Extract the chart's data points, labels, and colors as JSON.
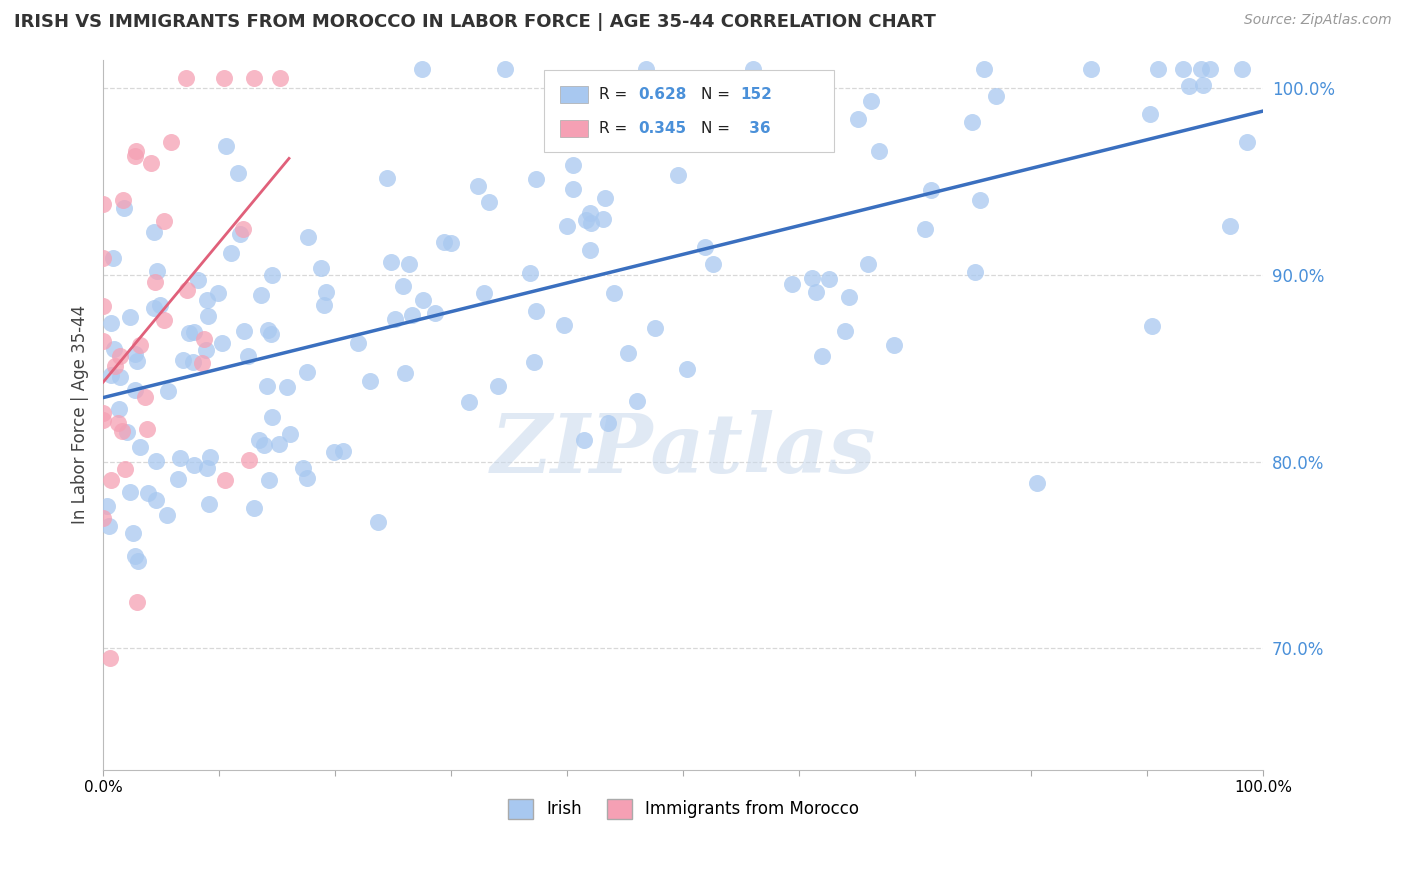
{
  "title": "IRISH VS IMMIGRANTS FROM MOROCCO IN LABOR FORCE | AGE 35-44 CORRELATION CHART",
  "source": "Source: ZipAtlas.com",
  "ylabel": "In Labor Force | Age 35-44",
  "xlim": [
    0.0,
    1.0
  ],
  "ylim": [
    0.635,
    1.015
  ],
  "xtick_positions": [
    0.0,
    0.1,
    0.2,
    0.3,
    0.4,
    0.5,
    0.6,
    0.7,
    0.8,
    0.9,
    1.0
  ],
  "xticklabels": [
    "0.0%",
    "",
    "",
    "",
    "",
    "",
    "",
    "",
    "",
    "",
    "100.0%"
  ],
  "ytick_positions": [
    0.7,
    0.8,
    0.9,
    1.0
  ],
  "ytick_labels": [
    "70.0%",
    "80.0%",
    "90.0%",
    "100.0%"
  ],
  "irish_color": "#a8c8f0",
  "irish_edge_color": "#7aafd4",
  "morocco_color": "#f5a0b4",
  "morocco_edge_color": "#e07090",
  "irish_line_color": "#3a6fbf",
  "morocco_line_color": "#e0607a",
  "ytick_color": "#4a90d9",
  "R_irish": 0.628,
  "N_irish": 152,
  "R_morocco": 0.345,
  "N_morocco": 36,
  "watermark": "ZIPatlas",
  "background_color": "#ffffff",
  "grid_color": "#d8d8d8",
  "legend_box_color": "#f5f5f5",
  "legend_border_color": "#cccccc",
  "title_color": "#333333",
  "source_color": "#999999"
}
